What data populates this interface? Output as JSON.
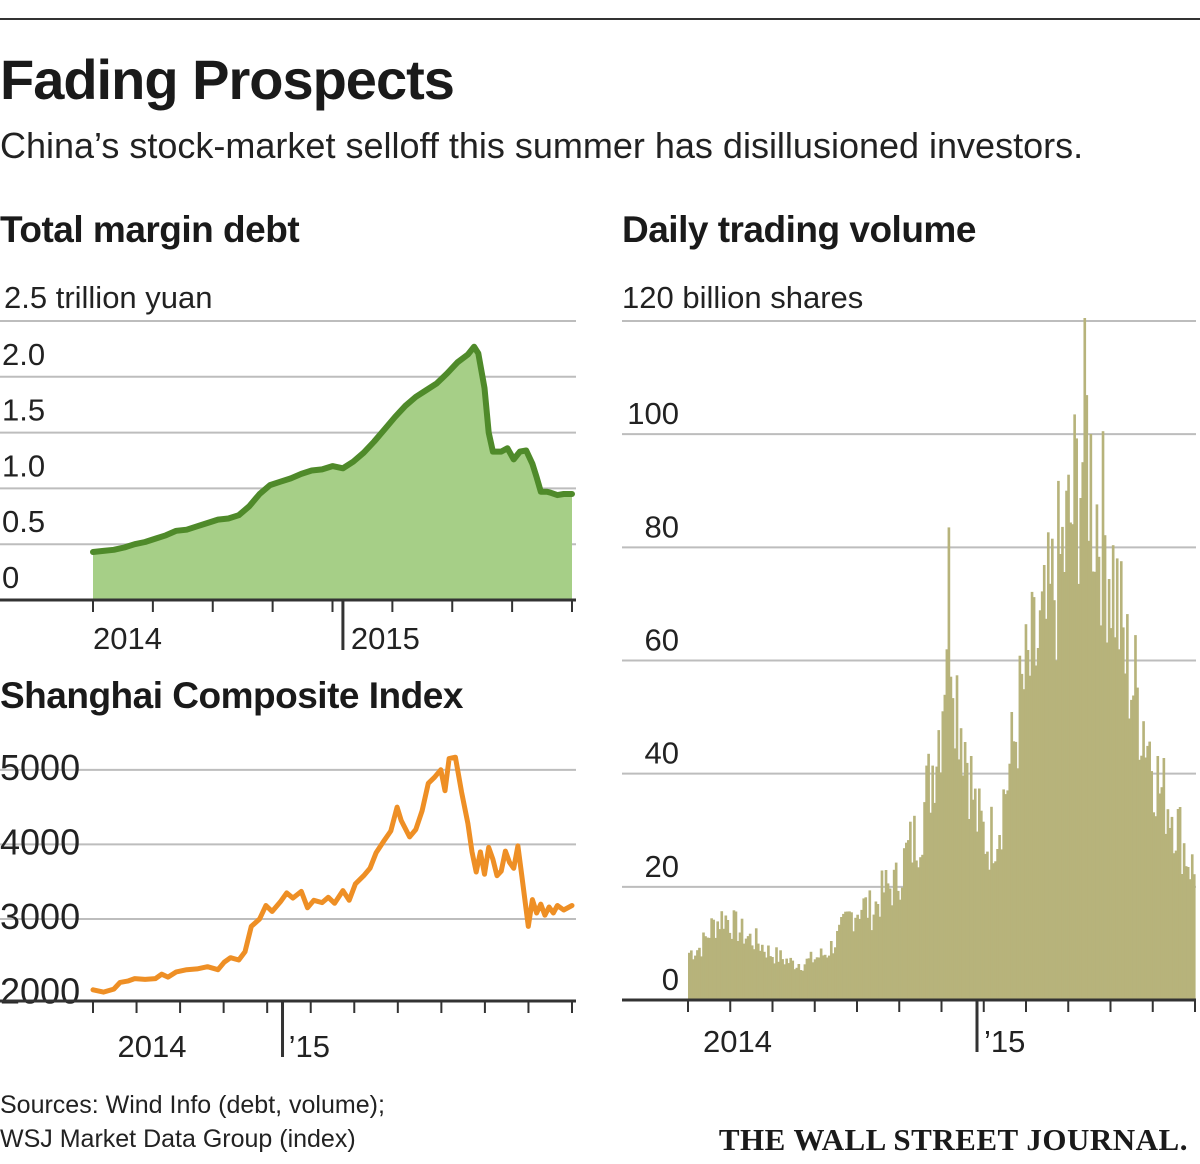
{
  "header": {
    "title": "Fading Prospects",
    "subtitle": "China’s stock-market selloff this summer has disillusioned investors."
  },
  "footer": {
    "source_line1": "Sources: Wind Info (debt, volume);",
    "source_line2": "WSJ Market Data Group (index)",
    "publisher": "THE WALL STREET JOURNAL."
  },
  "colors": {
    "margin_line": "#4f8a2a",
    "margin_fill": "#a6cf87",
    "index_line": "#ee8f25",
    "volume_bar": "#b7b37b",
    "grid": "#bdbdbd",
    "axis": "#333333"
  },
  "chart_data": [
    {
      "id": "margin",
      "type": "area",
      "title": "Total margin debt",
      "unit_label": "2.5 trillion yuan",
      "ylabel": "trillion yuan",
      "ylim": [
        0,
        2.5
      ],
      "yticks": [
        0,
        0.5,
        1.0,
        1.5,
        2.0,
        2.5
      ],
      "ytick_labels": [
        "0",
        "0.5",
        "1.0",
        "1.5",
        "2.0",
        ""
      ],
      "xlim": [
        0,
        22
      ],
      "year_labels": [
        {
          "x": 0.0,
          "label": "2014"
        },
        {
          "x": 12.0,
          "label": "2015"
        }
      ],
      "year_divider": 12,
      "points": [
        [
          0.0,
          0.43
        ],
        [
          0.5,
          0.44
        ],
        [
          1.0,
          0.45
        ],
        [
          1.5,
          0.47
        ],
        [
          2.0,
          0.5
        ],
        [
          2.5,
          0.52
        ],
        [
          3.0,
          0.55
        ],
        [
          3.5,
          0.58
        ],
        [
          4.0,
          0.62
        ],
        [
          4.5,
          0.63
        ],
        [
          5.0,
          0.66
        ],
        [
          5.5,
          0.69
        ],
        [
          6.0,
          0.72
        ],
        [
          6.5,
          0.73
        ],
        [
          7.0,
          0.76
        ],
        [
          7.5,
          0.84
        ],
        [
          8.0,
          0.95
        ],
        [
          8.5,
          1.03
        ],
        [
          9.0,
          1.06
        ],
        [
          9.5,
          1.09
        ],
        [
          10.0,
          1.13
        ],
        [
          10.5,
          1.16
        ],
        [
          11.0,
          1.17
        ],
        [
          11.5,
          1.2
        ],
        [
          12.0,
          1.18
        ],
        [
          12.5,
          1.24
        ],
        [
          13.0,
          1.32
        ],
        [
          13.5,
          1.42
        ],
        [
          14.0,
          1.53
        ],
        [
          14.5,
          1.64
        ],
        [
          15.0,
          1.74
        ],
        [
          15.5,
          1.82
        ],
        [
          16.0,
          1.88
        ],
        [
          16.5,
          1.94
        ],
        [
          17.0,
          2.03
        ],
        [
          17.5,
          2.13
        ],
        [
          18.0,
          2.2
        ],
        [
          18.3,
          2.27
        ],
        [
          18.5,
          2.21
        ],
        [
          18.8,
          1.9
        ],
        [
          19.0,
          1.5
        ],
        [
          19.2,
          1.33
        ],
        [
          19.6,
          1.33
        ],
        [
          19.9,
          1.36
        ],
        [
          20.2,
          1.26
        ],
        [
          20.5,
          1.33
        ],
        [
          20.8,
          1.34
        ],
        [
          21.1,
          1.22
        ],
        [
          21.3,
          1.1
        ],
        [
          21.5,
          0.97
        ],
        [
          21.8,
          0.97
        ],
        [
          22.0,
          0.96
        ],
        [
          22.3,
          0.94
        ],
        [
          22.6,
          0.95
        ],
        [
          23.0,
          0.95
        ]
      ]
    },
    {
      "id": "index",
      "type": "line",
      "title": "Shanghai Composite Index",
      "ylim": [
        1900,
        5400
      ],
      "yticks": [
        2000,
        3000,
        4000,
        5000
      ],
      "ytick_labels": [
        "2000",
        "3000",
        "4000",
        "5000"
      ],
      "xlim": [
        0,
        22
      ],
      "year_labels": [
        {
          "x": 0.6,
          "label": "2014"
        },
        {
          "x": 9.2,
          "label": "’15"
        }
      ],
      "year_divider": 9.1,
      "points": [
        [
          0.0,
          2050
        ],
        [
          0.5,
          2020
        ],
        [
          1.0,
          2060
        ],
        [
          1.3,
          2150
        ],
        [
          1.7,
          2170
        ],
        [
          2.0,
          2200
        ],
        [
          2.5,
          2190
        ],
        [
          3.0,
          2200
        ],
        [
          3.3,
          2260
        ],
        [
          3.6,
          2220
        ],
        [
          4.0,
          2290
        ],
        [
          4.5,
          2320
        ],
        [
          5.0,
          2330
        ],
        [
          5.5,
          2360
        ],
        [
          6.0,
          2320
        ],
        [
          6.3,
          2420
        ],
        [
          6.6,
          2480
        ],
        [
          7.0,
          2450
        ],
        [
          7.3,
          2560
        ],
        [
          7.6,
          2900
        ],
        [
          8.0,
          3000
        ],
        [
          8.3,
          3180
        ],
        [
          8.6,
          3100
        ],
        [
          9.0,
          3230
        ],
        [
          9.3,
          3350
        ],
        [
          9.6,
          3280
        ],
        [
          10.0,
          3370
        ],
        [
          10.3,
          3150
        ],
        [
          10.6,
          3250
        ],
        [
          11.0,
          3220
        ],
        [
          11.3,
          3290
        ],
        [
          11.6,
          3210
        ],
        [
          12.0,
          3380
        ],
        [
          12.3,
          3250
        ],
        [
          12.6,
          3470
        ],
        [
          13.0,
          3580
        ],
        [
          13.3,
          3680
        ],
        [
          13.6,
          3890
        ],
        [
          14.0,
          4060
        ],
        [
          14.3,
          4180
        ],
        [
          14.6,
          4500
        ],
        [
          14.8,
          4320
        ],
        [
          15.2,
          4100
        ],
        [
          15.5,
          4200
        ],
        [
          15.8,
          4450
        ],
        [
          16.1,
          4820
        ],
        [
          16.4,
          4900
        ],
        [
          16.7,
          5000
        ],
        [
          16.9,
          4720
        ],
        [
          17.1,
          5150
        ],
        [
          17.4,
          5170
        ],
        [
          17.7,
          4700
        ],
        [
          18.0,
          4280
        ],
        [
          18.2,
          3900
        ],
        [
          18.4,
          3630
        ],
        [
          18.6,
          3900
        ],
        [
          18.8,
          3600
        ],
        [
          19.0,
          3960
        ],
        [
          19.2,
          3800
        ],
        [
          19.4,
          3580
        ],
        [
          19.6,
          3640
        ],
        [
          19.8,
          3910
        ],
        [
          20.0,
          3760
        ],
        [
          20.2,
          3680
        ],
        [
          20.4,
          3980
        ],
        [
          20.6,
          3560
        ],
        [
          20.8,
          3120
        ],
        [
          20.9,
          2900
        ],
        [
          21.1,
          3260
        ],
        [
          21.3,
          3080
        ],
        [
          21.5,
          3200
        ],
        [
          21.7,
          3050
        ],
        [
          21.9,
          3160
        ],
        [
          22.1,
          3080
        ],
        [
          22.3,
          3180
        ],
        [
          22.6,
          3120
        ],
        [
          23.0,
          3180
        ]
      ]
    },
    {
      "id": "volume",
      "type": "bar",
      "title": "Daily trading volume",
      "unit_label": "120 billion shares",
      "ylabel": "billion shares",
      "ylim": [
        0,
        120
      ],
      "yticks": [
        0,
        20,
        40,
        60,
        80,
        100,
        120
      ],
      "ytick_labels": [
        "0",
        "20",
        "40",
        "60",
        "80",
        "100",
        ""
      ],
      "xlim": [
        0,
        22
      ],
      "year_labels": [
        {
          "x": 0.6,
          "label": "2014"
        },
        {
          "x": 12.4,
          "label": "’15"
        }
      ],
      "year_divider": 12.2,
      "envelope": [
        [
          0.0,
          9
        ],
        [
          0.5,
          10
        ],
        [
          1.0,
          14
        ],
        [
          1.5,
          16
        ],
        [
          2.0,
          14
        ],
        [
          2.5,
          12
        ],
        [
          3.0,
          11
        ],
        [
          3.5,
          9
        ],
        [
          4.0,
          8
        ],
        [
          4.5,
          7
        ],
        [
          5.0,
          7
        ],
        [
          5.5,
          8
        ],
        [
          6.0,
          9
        ],
        [
          6.5,
          12
        ],
        [
          7.0,
          16
        ],
        [
          7.5,
          18
        ],
        [
          8.0,
          17
        ],
        [
          8.5,
          21
        ],
        [
          9.0,
          22
        ],
        [
          9.5,
          28
        ],
        [
          10.0,
          32
        ],
        [
          10.5,
          42
        ],
        [
          11.0,
          55
        ],
        [
          11.3,
          80
        ],
        [
          11.6,
          60
        ],
        [
          12.0,
          50
        ],
        [
          12.5,
          35
        ],
        [
          13.0,
          30
        ],
        [
          13.5,
          34
        ],
        [
          14.0,
          45
        ],
        [
          14.5,
          58
        ],
        [
          15.0,
          65
        ],
        [
          15.5,
          70
        ],
        [
          16.0,
          80
        ],
        [
          16.5,
          88
        ],
        [
          17.0,
          100
        ],
        [
          17.3,
          108
        ],
        [
          17.6,
          95
        ],
        [
          18.0,
          90
        ],
        [
          18.5,
          80
        ],
        [
          19.0,
          65
        ],
        [
          19.5,
          58
        ],
        [
          20.0,
          50
        ],
        [
          20.5,
          40
        ],
        [
          21.0,
          37
        ],
        [
          21.5,
          30
        ],
        [
          22.0,
          24
        ]
      ]
    }
  ]
}
